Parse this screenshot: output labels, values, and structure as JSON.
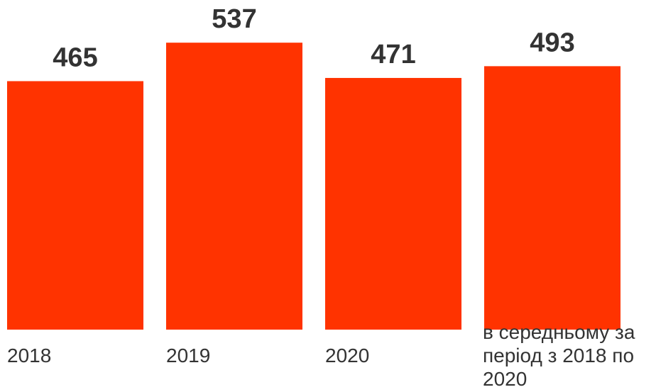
{
  "chart_data": {
    "type": "bar",
    "categories": [
      "2018",
      "2019",
      "2020",
      "в середньому за період з 2018 по 2020"
    ],
    "category_lines": [
      [
        "2018"
      ],
      [
        "2019"
      ],
      [
        "2020"
      ],
      [
        "в середньому за",
        "період з 2018 по",
        "2020"
      ]
    ],
    "values": [
      465,
      537,
      471,
      493
    ],
    "value_labels": [
      "465",
      "537",
      "471",
      "493"
    ],
    "title": "",
    "xlabel": "",
    "ylabel": "",
    "grid": false,
    "legend": "none",
    "colors": {
      "bar": "#ff3300",
      "text": "#333333",
      "background": "#ffffff"
    }
  }
}
